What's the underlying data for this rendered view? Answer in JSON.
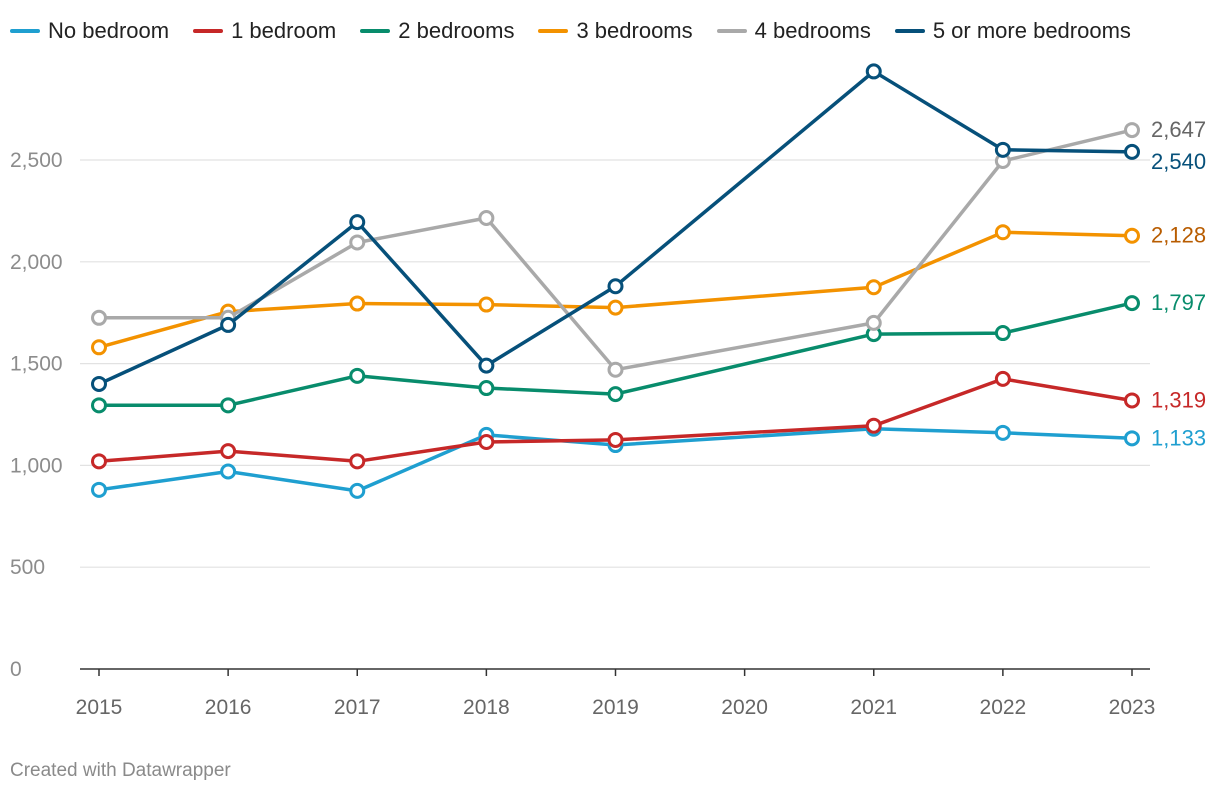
{
  "chart_data": {
    "type": "line",
    "title": "",
    "xlabel": "",
    "ylabel": "",
    "x": [
      "2015",
      "2016",
      "2017",
      "2018",
      "2019",
      "2020",
      "2021",
      "2022",
      "2023"
    ],
    "xlim": [
      2015,
      2023
    ],
    "ylim": [
      0,
      2800
    ],
    "yticks": [
      0,
      500,
      1000,
      1500,
      2000,
      2500
    ],
    "ytick_labels": [
      "0",
      "500",
      "1,000",
      "1,500",
      "2,000",
      "2,500"
    ],
    "grid": true,
    "legend": "top",
    "series": [
      {
        "name": "No bedroom",
        "color": "#1f9fd0",
        "label_color": "#1f9fd0",
        "points": [
          [
            2015,
            880
          ],
          [
            2016,
            970
          ],
          [
            2017,
            875
          ],
          [
            2018,
            1150
          ],
          [
            2019,
            1100
          ],
          [
            2021,
            1180
          ],
          [
            2022,
            1160
          ],
          [
            2023,
            1133
          ]
        ],
        "end_label": "1,133"
      },
      {
        "name": "1 bedroom",
        "color": "#c62828",
        "label_color": "#c62828",
        "points": [
          [
            2015,
            1020
          ],
          [
            2016,
            1070
          ],
          [
            2017,
            1020
          ],
          [
            2018,
            1115
          ],
          [
            2019,
            1125
          ],
          [
            2021,
            1195
          ],
          [
            2022,
            1425
          ],
          [
            2023,
            1319
          ]
        ],
        "end_label": "1,319"
      },
      {
        "name": "2 bedrooms",
        "color": "#088c6c",
        "label_color": "#088c6c",
        "points": [
          [
            2015,
            1295
          ],
          [
            2016,
            1295
          ],
          [
            2017,
            1440
          ],
          [
            2018,
            1380
          ],
          [
            2019,
            1350
          ],
          [
            2021,
            1645
          ],
          [
            2022,
            1650
          ],
          [
            2023,
            1797
          ]
        ],
        "end_label": "1,797"
      },
      {
        "name": "3 bedrooms",
        "color": "#f39200",
        "label_color": "#b85c00",
        "points": [
          [
            2015,
            1580
          ],
          [
            2016,
            1755
          ],
          [
            2017,
            1795
          ],
          [
            2018,
            1790
          ],
          [
            2019,
            1775
          ],
          [
            2021,
            1875
          ],
          [
            2022,
            2145
          ],
          [
            2023,
            2128
          ]
        ],
        "end_label": "2,128"
      },
      {
        "name": "4 bedrooms",
        "color": "#a9a9a9",
        "label_color": "#666666",
        "points": [
          [
            2015,
            1725
          ],
          [
            2016,
            1725
          ],
          [
            2017,
            2095
          ],
          [
            2018,
            2215
          ],
          [
            2019,
            1470
          ],
          [
            2021,
            1700
          ],
          [
            2022,
            2495
          ],
          [
            2023,
            2647
          ]
        ],
        "end_label": "2,647"
      },
      {
        "name": "5 or more bedrooms",
        "color": "#06507a",
        "label_color": "#06507a",
        "points": [
          [
            2015,
            1400
          ],
          [
            2016,
            1690
          ],
          [
            2017,
            2195
          ],
          [
            2018,
            1490
          ],
          [
            2019,
            1880
          ],
          [
            2021,
            2935
          ],
          [
            2022,
            2550
          ],
          [
            2023,
            2540
          ]
        ],
        "end_label": "2,540"
      }
    ]
  },
  "credit": "Created with Datawrapper"
}
